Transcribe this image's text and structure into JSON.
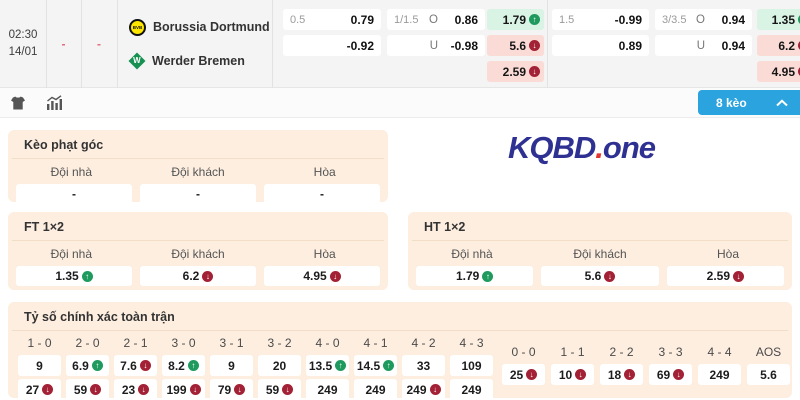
{
  "match": {
    "time": "02:30",
    "date": "14/01",
    "dash1": "-",
    "dash2": "-",
    "home_team": "Borussia Dortmund",
    "away_team": "Werder Bremen",
    "home_logo": "BVB",
    "away_logo": "W",
    "odds": {
      "ht_hdp": {
        "line": "0.5",
        "home": "0.79",
        "away": "-0.92"
      },
      "ht_ou": {
        "line": "1/1.5",
        "o": "O",
        "over": "0.86",
        "u": "U",
        "under": "-0.98"
      },
      "ht_1x2": {
        "home": {
          "v": "1.79",
          "trend": "up"
        },
        "away": {
          "v": "5.6",
          "trend": "down"
        },
        "draw": {
          "v": "2.59",
          "trend": "down"
        }
      },
      "ft_hdp": {
        "line": "1.5",
        "home": "-0.99",
        "away": "0.89"
      },
      "ft_ou": {
        "line": "3/3.5",
        "o": "O",
        "over": "0.94",
        "u": "U",
        "under": "0.94"
      },
      "ft_1x2": {
        "home": {
          "v": "1.35",
          "trend": "up"
        },
        "away": {
          "v": "6.2",
          "trend": "down"
        },
        "draw": {
          "v": "4.95",
          "trend": "down"
        }
      }
    }
  },
  "toolbar": {
    "bets_button": "8 kèo"
  },
  "brand": {
    "kqbd": "KQBD",
    "dot": ".",
    "one": "one"
  },
  "corner_section": {
    "title": "Kèo phạt góc",
    "headers": [
      "Đội nhà",
      "Đội khách",
      "Hòa"
    ],
    "values": [
      "-",
      "-",
      "-"
    ]
  },
  "ft_section": {
    "title": "FT 1×2",
    "headers": [
      "Đội nhà",
      "Đội khách",
      "Hòa"
    ],
    "values": [
      {
        "v": "1.35",
        "trend": "up"
      },
      {
        "v": "6.2",
        "trend": "down"
      },
      {
        "v": "4.95",
        "trend": "down"
      }
    ]
  },
  "ht_section": {
    "title": "HT 1×2",
    "headers": [
      "Đội nhà",
      "Đội khách",
      "Hòa"
    ],
    "values": [
      {
        "v": "1.79",
        "trend": "up"
      },
      {
        "v": "5.6",
        "trend": "down"
      },
      {
        "v": "2.59",
        "trend": "down"
      }
    ]
  },
  "exact_score_section": {
    "title": "Tỷ số chính xác toàn trận",
    "columns": [
      {
        "score": "1 - 0",
        "row1": {
          "v": "9",
          "trend": "none"
        },
        "row2": {
          "v": "27",
          "trend": "down"
        }
      },
      {
        "score": "2 - 0",
        "row1": {
          "v": "6.9",
          "trend": "up"
        },
        "row2": {
          "v": "59",
          "trend": "down"
        }
      },
      {
        "score": "2 - 1",
        "row1": {
          "v": "7.6",
          "trend": "down"
        },
        "row2": {
          "v": "23",
          "trend": "down"
        }
      },
      {
        "score": "3 - 0",
        "row1": {
          "v": "8.2",
          "trend": "up"
        },
        "row2": {
          "v": "199",
          "trend": "down"
        }
      },
      {
        "score": "3 - 1",
        "row1": {
          "v": "9",
          "trend": "none"
        },
        "row2": {
          "v": "79",
          "trend": "down"
        }
      },
      {
        "score": "3 - 2",
        "row1": {
          "v": "20",
          "trend": "none"
        },
        "row2": {
          "v": "59",
          "trend": "down"
        }
      },
      {
        "score": "4 - 0",
        "row1": {
          "v": "13.5",
          "trend": "up"
        },
        "row2": {
          "v": "249",
          "trend": "none"
        }
      },
      {
        "score": "4 - 1",
        "row1": {
          "v": "14.5",
          "trend": "up"
        },
        "row2": {
          "v": "249",
          "trend": "none"
        }
      },
      {
        "score": "4 - 2",
        "row1": {
          "v": "33",
          "trend": "none"
        },
        "row2": {
          "v": "249",
          "trend": "down"
        }
      },
      {
        "score": "4 - 3",
        "row1": {
          "v": "109",
          "trend": "none"
        },
        "row2": {
          "v": "249",
          "trend": "none"
        }
      }
    ],
    "draw_columns": [
      {
        "score": "0 - 0",
        "value": {
          "v": "25",
          "trend": "down"
        }
      },
      {
        "score": "1 - 1",
        "value": {
          "v": "10",
          "trend": "down"
        }
      },
      {
        "score": "2 - 2",
        "value": {
          "v": "18",
          "trend": "down"
        }
      },
      {
        "score": "3 - 3",
        "value": {
          "v": "69",
          "trend": "down"
        }
      },
      {
        "score": "4 - 4",
        "value": {
          "v": "249",
          "trend": "none"
        }
      },
      {
        "score": "AOS",
        "value": {
          "v": "5.6",
          "trend": "none"
        }
      }
    ]
  },
  "colors": {
    "accent_blue": "#2ba3de",
    "brand_navy": "#2e3192",
    "brand_red": "#e3342f",
    "up_green_bg": "#d9f3e5",
    "up_green_icon": "#1f9a5e",
    "down_red_bg": "#fbdbd6",
    "down_red_icon": "#a32135",
    "section_bg": "#fdeee0"
  }
}
